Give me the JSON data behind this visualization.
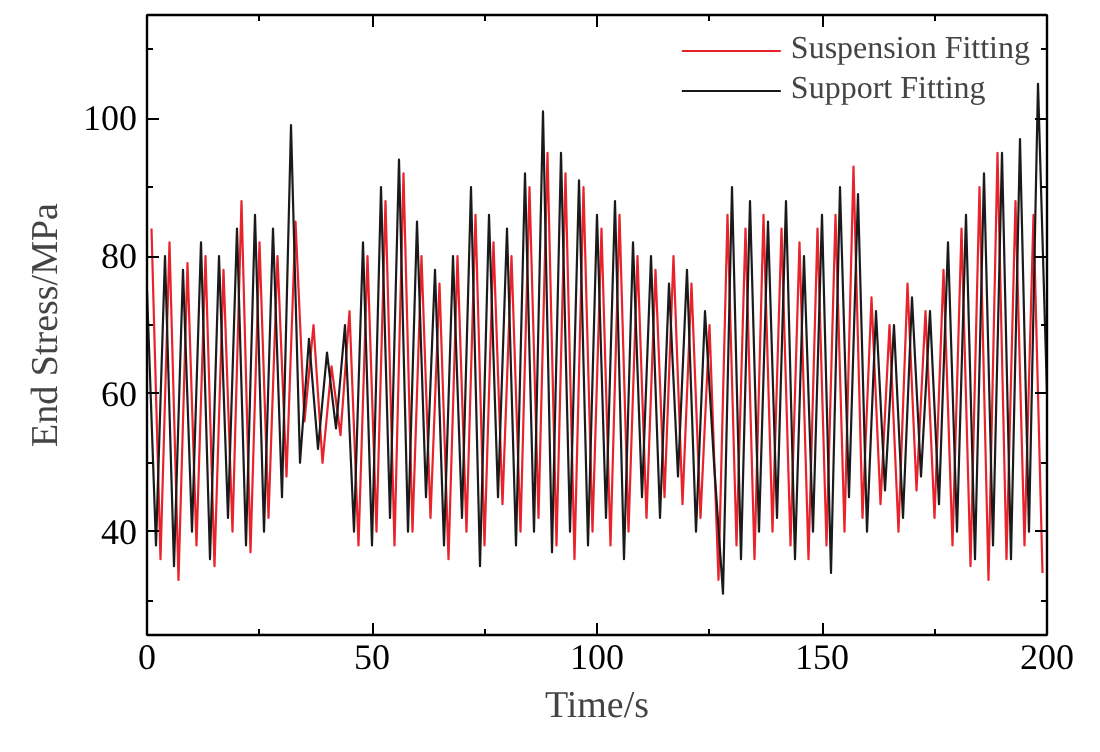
{
  "chart_data": {
    "type": "line",
    "xlabel": "Time/s",
    "ylabel": "End Stress/MPa",
    "xlim": [
      0,
      200
    ],
    "ylim": [
      25,
      115
    ],
    "xticks": [
      0,
      {
        "value": 25,
        "label": null
      },
      50,
      {
        "value": 75,
        "label": null
      },
      100,
      {
        "value": 125,
        "label": null
      },
      150,
      {
        "value": 175,
        "label": null
      },
      200
    ],
    "yticks": [
      {
        "value": 30,
        "label": null
      },
      40,
      {
        "value": 50,
        "label": null
      },
      60,
      {
        "value": 70,
        "label": null
      },
      80,
      {
        "value": 90,
        "label": null
      },
      100,
      {
        "value": 110,
        "label": null
      }
    ],
    "grid": false,
    "legend": "top right",
    "marker": "none",
    "line_style": "solid",
    "series": [
      {
        "name": "Suspension Fitting",
        "color": "#e8232b",
        "x": [
          1,
          3,
          5,
          7,
          9,
          11,
          13,
          15,
          17,
          19,
          21,
          23,
          25,
          27,
          29,
          31,
          33,
          35,
          37,
          39,
          41,
          43,
          45,
          47,
          49,
          51,
          53,
          55,
          57,
          59,
          61,
          63,
          65,
          67,
          69,
          71,
          73,
          75,
          77,
          79,
          81,
          83,
          85,
          87,
          89,
          91,
          93,
          95,
          97,
          99,
          101,
          103,
          105,
          107,
          109,
          111,
          113,
          115,
          117,
          119,
          121,
          123,
          125,
          127,
          129,
          131,
          133,
          135,
          137,
          139,
          141,
          143,
          145,
          147,
          149,
          151,
          153,
          155,
          157,
          159,
          161,
          163,
          165,
          167,
          169,
          171,
          173,
          175,
          177,
          179,
          181,
          183,
          185,
          187,
          189,
          191,
          193,
          195,
          197,
          199
        ],
        "values": [
          84,
          36,
          82,
          33,
          79,
          38,
          80,
          35,
          78,
          40,
          88,
          37,
          82,
          42,
          80,
          48,
          85,
          56,
          70,
          50,
          64,
          54,
          72,
          38,
          80,
          40,
          88,
          38,
          92,
          40,
          80,
          42,
          76,
          36,
          80,
          40,
          86,
          38,
          82,
          44,
          80,
          40,
          90,
          42,
          95,
          38,
          92,
          36,
          90,
          40,
          84,
          38,
          86,
          40,
          80,
          42,
          78,
          45,
          80,
          44,
          76,
          42,
          70,
          33,
          86,
          38,
          84,
          36,
          86,
          40,
          84,
          38,
          82,
          36,
          84,
          38,
          86,
          40,
          93,
          42,
          74,
          44,
          70,
          40,
          76,
          46,
          72,
          42,
          78,
          38,
          84,
          35,
          90,
          33,
          95,
          36,
          88,
          38,
          86,
          34
        ]
      },
      {
        "name": "Support Fitting",
        "color": "#1a1a1a",
        "x": [
          0,
          2,
          4,
          6,
          8,
          10,
          12,
          14,
          16,
          18,
          20,
          22,
          24,
          26,
          28,
          30,
          32,
          34,
          36,
          38,
          40,
          42,
          44,
          46,
          48,
          50,
          52,
          54,
          56,
          58,
          60,
          62,
          64,
          66,
          68,
          70,
          72,
          74,
          76,
          78,
          80,
          82,
          84,
          86,
          88,
          90,
          92,
          94,
          96,
          98,
          100,
          102,
          104,
          106,
          108,
          110,
          112,
          114,
          116,
          118,
          120,
          122,
          124,
          126,
          128,
          130,
          132,
          134,
          136,
          138,
          140,
          142,
          144,
          146,
          148,
          150,
          152,
          154,
          156,
          158,
          160,
          162,
          164,
          166,
          168,
          170,
          172,
          174,
          176,
          178,
          180,
          182,
          184,
          186,
          188,
          190,
          192,
          194,
          196,
          198,
          200
        ],
        "values": [
          75,
          38,
          80,
          35,
          78,
          40,
          82,
          36,
          80,
          42,
          84,
          38,
          86,
          40,
          84,
          45,
          99,
          50,
          68,
          52,
          66,
          55,
          70,
          40,
          82,
          38,
          90,
          42,
          94,
          40,
          85,
          45,
          78,
          38,
          80,
          42,
          90,
          35,
          86,
          45,
          84,
          38,
          92,
          40,
          101,
          37,
          95,
          40,
          91,
          38,
          86,
          42,
          88,
          36,
          82,
          45,
          80,
          42,
          76,
          48,
          78,
          40,
          72,
          50,
          31,
          90,
          36,
          88,
          40,
          85,
          42,
          88,
          36,
          80,
          40,
          86,
          34,
          90,
          45,
          89,
          40,
          72,
          46,
          70,
          42,
          74,
          48,
          72,
          44,
          82,
          40,
          86,
          36,
          92,
          38,
          95,
          36,
          97,
          40,
          105,
          60
        ]
      }
    ]
  }
}
